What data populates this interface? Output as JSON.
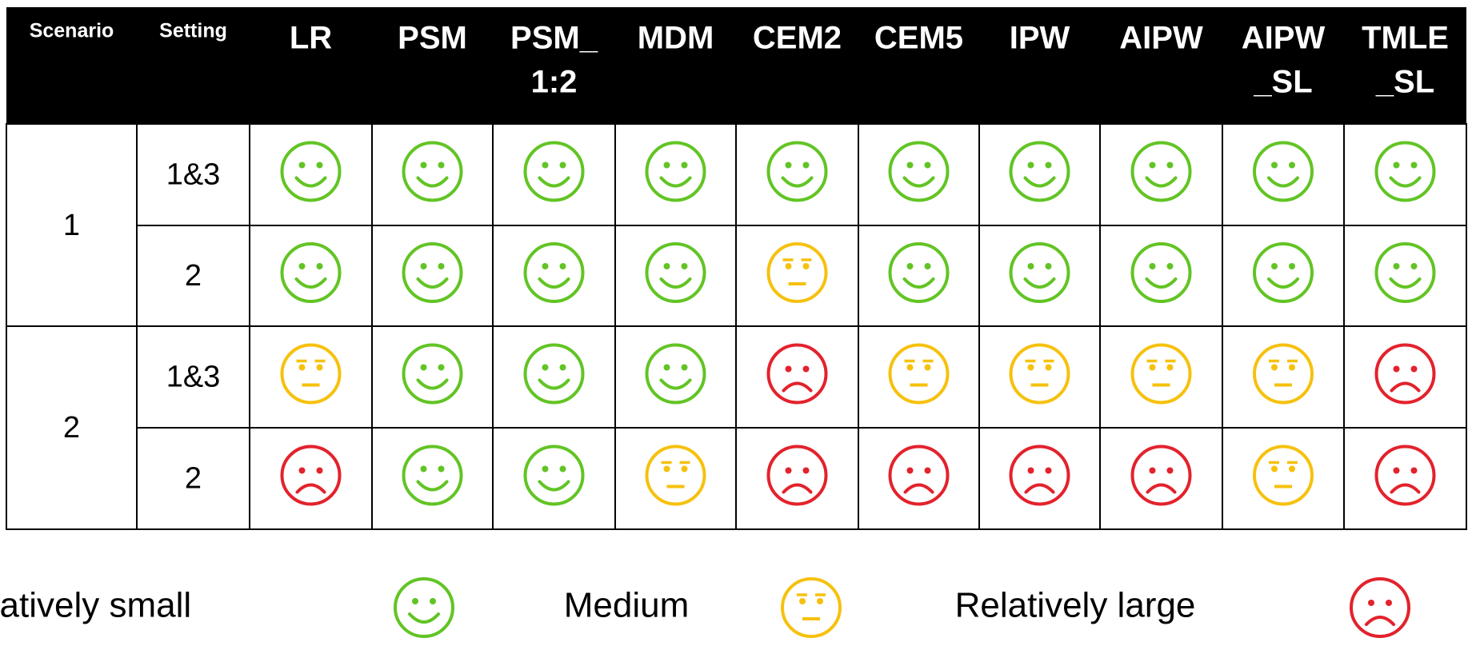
{
  "table": {
    "header": {
      "scenario": "Scenario",
      "setting": "Setting",
      "methods": [
        [
          "LR"
        ],
        [
          "PSM"
        ],
        [
          "PSM_",
          "1:2"
        ],
        [
          "MDM"
        ],
        [
          "CEM2"
        ],
        [
          "CEM5"
        ],
        [
          "IPW"
        ],
        [
          "AIPW"
        ],
        [
          "AIPW",
          "_SL"
        ],
        [
          "TMLE",
          "_SL"
        ]
      ]
    },
    "groups": [
      {
        "scenario": "1",
        "rows": [
          {
            "setting": "1&3",
            "cells": [
              0,
              0,
              0,
              0,
              0,
              0,
              0,
              0,
              0,
              0
            ]
          },
          {
            "setting": "2",
            "cells": [
              0,
              0,
              0,
              0,
              1,
              0,
              0,
              0,
              0,
              0
            ]
          }
        ]
      },
      {
        "scenario": "2",
        "rows": [
          {
            "setting": "1&3",
            "cells": [
              1,
              0,
              0,
              0,
              2,
              1,
              1,
              1,
              1,
              2
            ]
          },
          {
            "setting": "2",
            "cells": [
              2,
              0,
              0,
              1,
              2,
              2,
              2,
              2,
              1,
              2
            ]
          }
        ]
      }
    ]
  },
  "legend": [
    {
      "label": "No or relatively small",
      "color": "#62c424"
    },
    {
      "label": "Medium",
      "color": "#f6c10e"
    },
    {
      "label": "Relatively large",
      "color": "#e3222c"
    }
  ]
}
